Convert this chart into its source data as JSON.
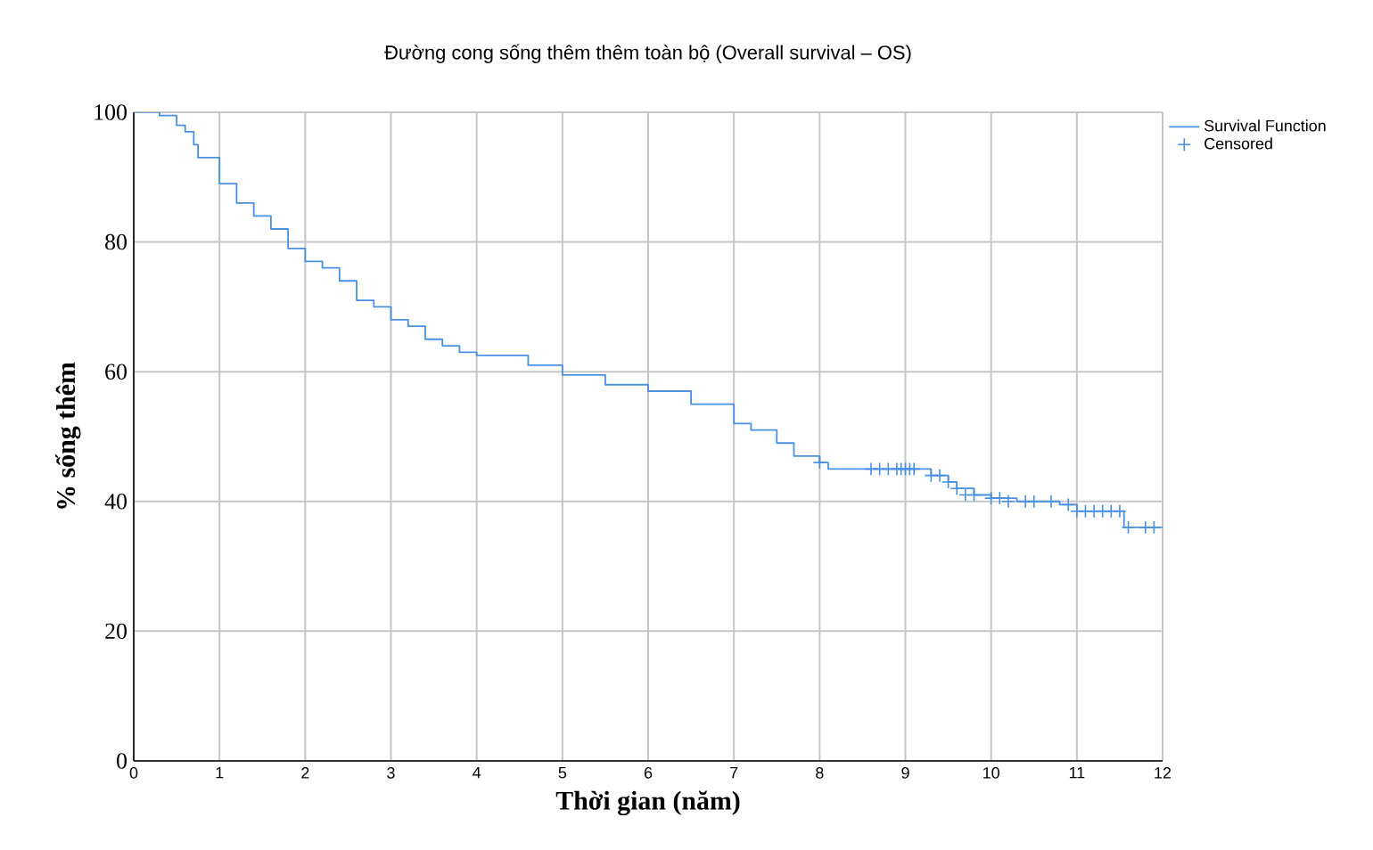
{
  "chart_data": {
    "type": "step",
    "title": "Đường cong sống thêm thêm toàn bộ (Overall survival – OS)",
    "xlabel": "Thời gian (năm)",
    "ylabel": "% sống thêm",
    "xlim": [
      0,
      12
    ],
    "xticks": [
      0,
      1,
      2,
      3,
      4,
      5,
      6,
      7,
      8,
      9,
      10,
      11,
      12
    ],
    "ylim": [
      0,
      100
    ],
    "yticks": [
      0,
      20,
      40,
      60,
      80,
      100
    ],
    "grid": true,
    "legend": "top right",
    "line_style": "solid",
    "series": [
      {
        "name": "Survival Function",
        "color": "#4a90e2",
        "marker": "none",
        "x": [
          0,
          0.3,
          0.5,
          0.6,
          0.7,
          0.75,
          1.0,
          1.2,
          1.4,
          1.6,
          1.8,
          2.0,
          2.2,
          2.4,
          2.6,
          2.8,
          3.0,
          3.2,
          3.4,
          3.6,
          3.8,
          4.0,
          4.6,
          5.0,
          5.5,
          6.0,
          6.5,
          7.0,
          7.2,
          7.5,
          7.7,
          8.0,
          8.1,
          9.3,
          9.5,
          9.6,
          9.8,
          10.0,
          10.3,
          10.8,
          11.0,
          11.55,
          12.0
        ],
        "values": [
          100,
          99.5,
          98,
          97,
          95,
          93,
          89,
          86,
          84,
          82,
          79,
          77,
          76,
          74,
          71,
          70,
          68,
          67,
          65,
          64,
          63,
          62.5,
          61,
          59.5,
          58,
          57,
          55,
          52,
          51,
          49,
          47,
          46,
          45,
          44,
          43,
          42,
          41,
          40.5,
          40,
          39.5,
          38.5,
          36,
          36
        ]
      },
      {
        "name": "Censored",
        "type": "scatter",
        "color": "#4a90e2",
        "marker": "cross",
        "x": [
          8.0,
          8.6,
          8.7,
          8.8,
          8.9,
          8.95,
          9.0,
          9.05,
          9.1,
          9.3,
          9.4,
          9.5,
          9.6,
          9.7,
          9.8,
          10.0,
          10.1,
          10.2,
          10.4,
          10.5,
          10.7,
          10.9,
          11.0,
          11.1,
          11.2,
          11.3,
          11.4,
          11.5,
          11.6,
          11.8,
          11.9
        ],
        "values": [
          46,
          45,
          45,
          45,
          45,
          45,
          45,
          45,
          45,
          44,
          44,
          43,
          42,
          41,
          41,
          40.5,
          40.5,
          40,
          40,
          40,
          40,
          39.5,
          38.5,
          38.5,
          38.5,
          38.5,
          38.5,
          38.5,
          36,
          36,
          36
        ]
      }
    ]
  }
}
